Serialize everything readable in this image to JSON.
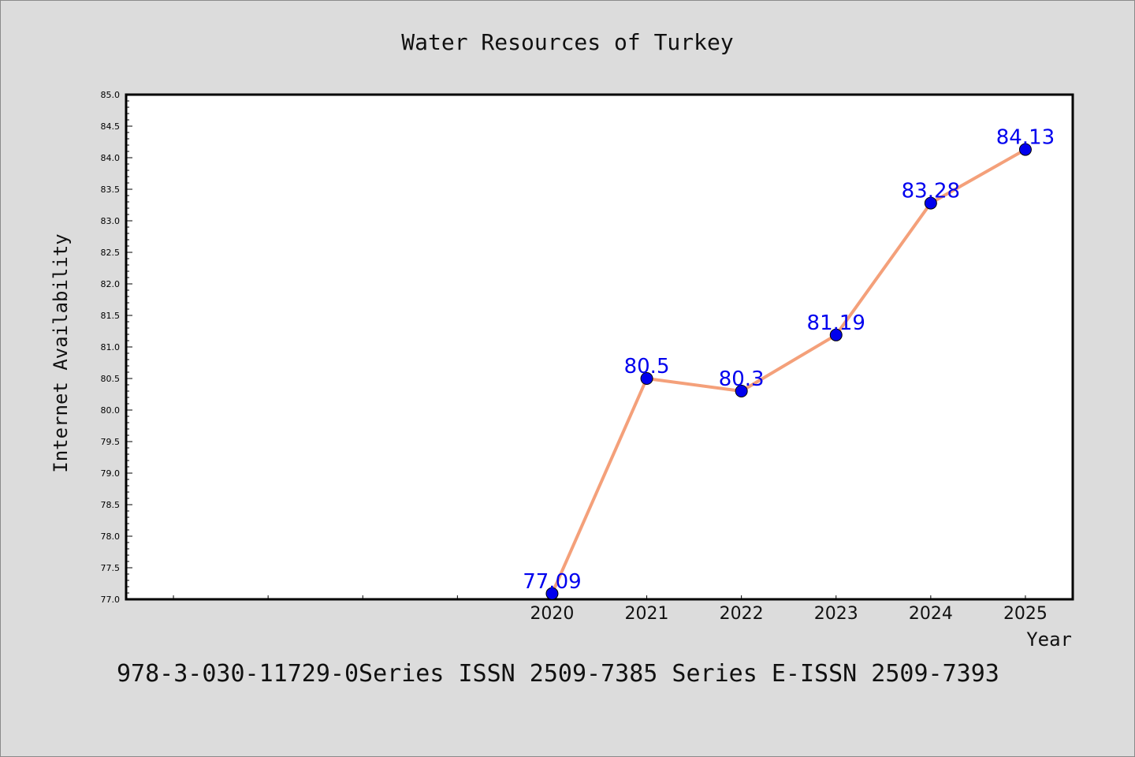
{
  "chart_data": {
    "type": "line",
    "title": "Water Resources of Turkey",
    "xlabel": "Year",
    "ylabel": "Internet Availability",
    "footnote": "978-3-030-11729-0Series ISSN 2509-7385 Series E-ISSN 2509-7393",
    "x": [
      2020,
      2021,
      2022,
      2023,
      2024,
      2025
    ],
    "x_tick_labels": [
      "2020",
      "2021",
      "2022",
      "2023",
      "2024",
      "2025"
    ],
    "series": [
      {
        "values": [
          77.09,
          80.5,
          80.3,
          81.19,
          83.28,
          84.13
        ],
        "data_labels": [
          "77.09",
          "80.5",
          "80.3",
          "81.19",
          "83.28",
          "84.13"
        ],
        "line_color": "#f4a07a",
        "marker_color": "#0000ee"
      }
    ],
    "ylim": [
      77.0,
      85.0
    ],
    "xlim": [
      2015.5,
      2025.5
    ],
    "y_tick_labels": [
      "77.0",
      "77.5",
      "78.0",
      "78.5",
      "79.0",
      "79.5",
      "80.0",
      "80.5",
      "81.0",
      "81.5",
      "82.0",
      "82.5",
      "83.0",
      "83.5",
      "84.0",
      "84.5",
      "85.0"
    ],
    "grid": false,
    "label_color": "#0000ee"
  }
}
